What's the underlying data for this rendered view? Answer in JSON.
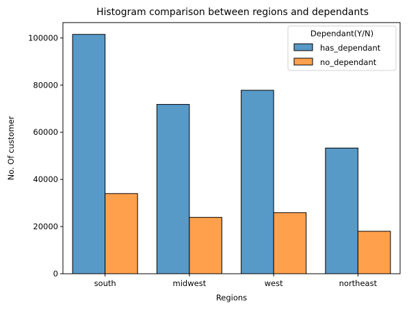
{
  "chart_data": {
    "type": "bar",
    "title": "Histogram comparison between regions and dependants",
    "xlabel": "Regions",
    "ylabel": "No. Of customer",
    "categories": [
      "south",
      "midwest",
      "west",
      "northeast"
    ],
    "series": [
      {
        "name": "has_dependant",
        "values": [
          101500,
          71800,
          77800,
          53300
        ],
        "color": "#5799c7"
      },
      {
        "name": "no_dependant",
        "values": [
          34000,
          23900,
          25900,
          18000
        ],
        "color": "#ffa04d"
      }
    ],
    "ylim": [
      0,
      106500
    ],
    "yticks": [
      0,
      20000,
      40000,
      60000,
      80000,
      100000
    ],
    "legend": {
      "title": "Dependant(Y/N)",
      "position": "top-right"
    },
    "grid": false
  }
}
